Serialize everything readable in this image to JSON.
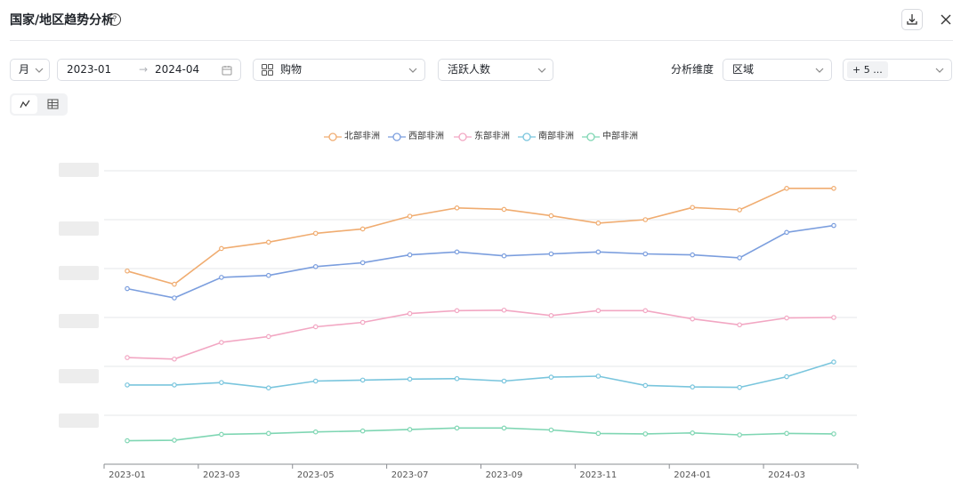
{
  "header": {
    "title": "国家/地区趋势分析",
    "help_icon": "question-circle-icon",
    "download_icon": "download-icon",
    "close_icon": "close-icon"
  },
  "controls": {
    "granularity": "月",
    "date_start": "2023-01",
    "date_separator": "→",
    "date_end": "2024-04",
    "category": "购物",
    "metric": "活跃人数",
    "dimension_label": "分析维度",
    "dimension_value": "区域",
    "extra_tag": "+ 5 ..."
  },
  "view_toggle": {
    "active": "line-chart",
    "options": [
      "line-chart-icon",
      "table-icon"
    ]
  },
  "chart_data": {
    "type": "line",
    "x": [
      "2023-01",
      "2023-02",
      "2023-03",
      "2023-04",
      "2023-05",
      "2023-06",
      "2023-07",
      "2023-08",
      "2023-09",
      "2023-10",
      "2023-11",
      "2023-12",
      "2024-01",
      "2024-02",
      "2024-03",
      "2024-04"
    ],
    "xtick_labels": [
      "2023-01",
      "2023-03",
      "2023-05",
      "2023-07",
      "2023-09",
      "2023-11",
      "2024-01",
      "2024-03"
    ],
    "ylim": [
      0,
      6
    ],
    "yticks_obscured": true,
    "grid": true,
    "legend_position": "top-center",
    "series": [
      {
        "name": "北部非洲",
        "color": "#f0ac70",
        "values": [
          3.95,
          3.68,
          4.41,
          4.54,
          4.72,
          4.81,
          5.07,
          5.24,
          5.21,
          5.08,
          4.93,
          5.0,
          5.25,
          5.2,
          5.64,
          5.64
        ]
      },
      {
        "name": "西部非洲",
        "color": "#7b9ede",
        "values": [
          3.59,
          3.4,
          3.82,
          3.86,
          4.04,
          4.12,
          4.28,
          4.34,
          4.26,
          4.3,
          4.34,
          4.3,
          4.28,
          4.22,
          4.74,
          4.88
        ]
      },
      {
        "name": "东部非洲",
        "color": "#f2a7c3",
        "values": [
          2.18,
          2.15,
          2.49,
          2.61,
          2.81,
          2.9,
          3.08,
          3.14,
          3.15,
          3.04,
          3.14,
          3.14,
          2.97,
          2.85,
          2.99,
          3.0
        ]
      },
      {
        "name": "南部非洲",
        "color": "#79c5dd",
        "values": [
          1.62,
          1.62,
          1.67,
          1.56,
          1.7,
          1.72,
          1.74,
          1.75,
          1.7,
          1.78,
          1.8,
          1.61,
          1.58,
          1.57,
          1.79,
          2.09
        ]
      },
      {
        "name": "中部非洲",
        "color": "#7fd6b3",
        "values": [
          0.48,
          0.49,
          0.61,
          0.63,
          0.66,
          0.68,
          0.71,
          0.74,
          0.74,
          0.7,
          0.63,
          0.62,
          0.64,
          0.6,
          0.63,
          0.62
        ]
      }
    ]
  }
}
